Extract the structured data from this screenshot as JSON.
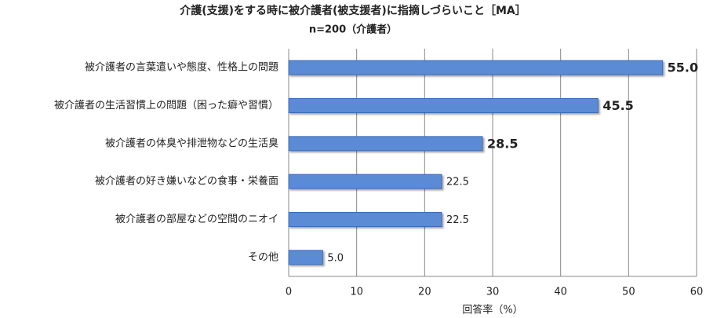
{
  "chart_data": {
    "type": "hbar",
    "title": "介護(支援)をする時に被介護者(被支援者)に指摘しづらいこと［MA］",
    "subtitle": "n=200（介護者）",
    "categories": [
      "被介護者の言葉遣いや態度、性格上の問題",
      "被介護者の生活習慣上の問題（困った癖や習慣）",
      "被介護者の体臭や排泄物などの生活臭",
      "被介護者の好き嫌いなどの食事・栄養面",
      "被介護者の部屋などの空間のニオイ",
      "その他"
    ],
    "values": [
      55,
      45.5,
      28.5,
      22.5,
      22.5,
      5
    ],
    "value_labels": [
      "55.0",
      "45.5",
      "28.5",
      "22.5",
      "22.5",
      "5.0"
    ],
    "color": "#5b8bd5",
    "xlabel": "回答率（%）",
    "xlim": [
      0,
      60
    ],
    "xticks": [
      0,
      10,
      20,
      30,
      40,
      50,
      60
    ],
    "grid": true
  }
}
